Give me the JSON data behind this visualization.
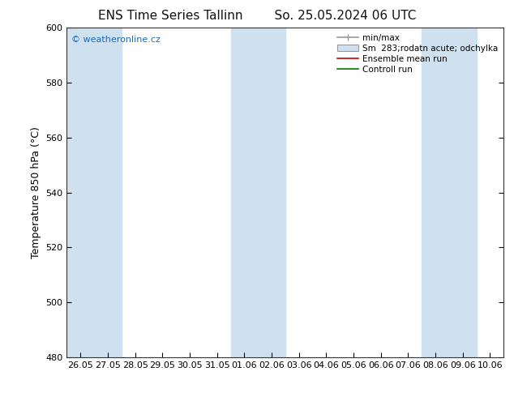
{
  "title_left": "ENS Time Series Tallinn",
  "title_right": "So. 25.05.2024 06 UTC",
  "ylabel": "Temperature 850 hPa (°C)",
  "ylim": [
    480,
    600
  ],
  "yticks": [
    480,
    500,
    520,
    540,
    560,
    580,
    600
  ],
  "xtick_labels": [
    "26.05",
    "27.05",
    "28.05",
    "29.05",
    "30.05",
    "31.05",
    "01.06",
    "02.06",
    "03.06",
    "04.06",
    "05.06",
    "06.06",
    "07.06",
    "08.06",
    "09.06",
    "10.06"
  ],
  "xtick_positions": [
    0,
    1,
    2,
    3,
    4,
    5,
    6,
    7,
    8,
    9,
    10,
    11,
    12,
    13,
    14,
    15
  ],
  "shaded_columns": [
    0,
    1,
    6,
    7,
    13,
    14
  ],
  "shade_color": "#cfe0ef",
  "background_color": "#ffffff",
  "watermark": "© weatheronline.cz",
  "watermark_color": "#1a6ab5",
  "legend_labels": [
    "min/max",
    "Sm  283;rodatn acute; odchylka",
    "Ensemble mean run",
    "Controll run"
  ],
  "title_fontsize": 11,
  "axis_fontsize": 9,
  "tick_fontsize": 8,
  "legend_line_color": "#999999",
  "legend_fill_color": "#cfe0ef",
  "ensemble_mean_color": "#cc0000",
  "control_run_color": "#007700"
}
